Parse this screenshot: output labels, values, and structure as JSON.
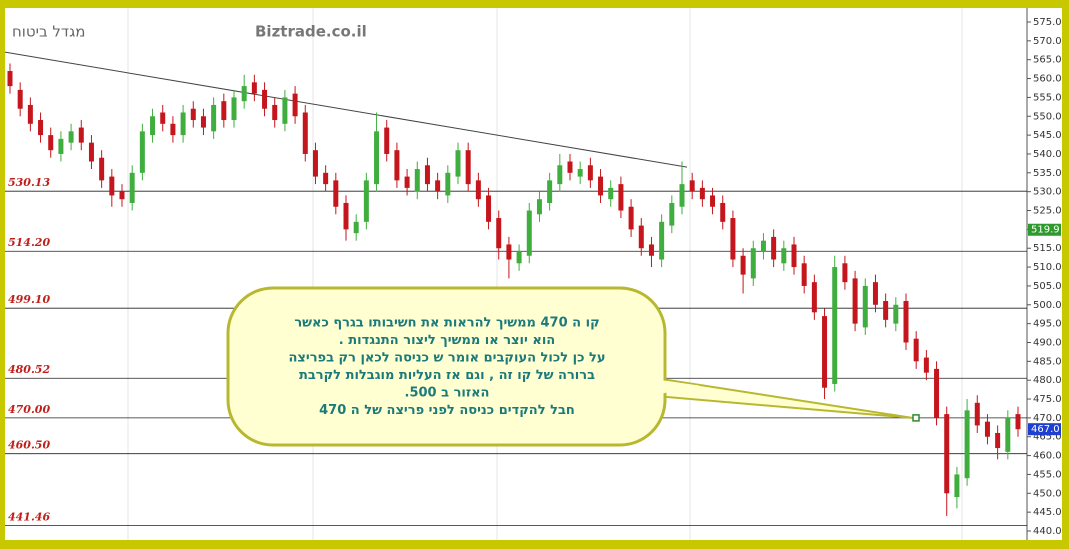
{
  "chart_data": {
    "type": "candlestick",
    "title": "מגדל ביטוח",
    "subtitle": "Biztrade.co.il",
    "open": [
      562,
      557,
      553,
      549,
      545,
      540,
      543,
      547,
      543,
      539,
      534,
      530,
      527,
      535,
      545,
      551,
      548,
      545,
      552,
      550,
      546,
      554,
      549,
      554,
      559,
      557,
      553,
      548,
      556,
      551,
      541,
      535,
      533,
      527,
      519,
      522,
      532,
      547,
      541,
      534,
      530,
      537,
      533,
      529,
      534,
      541,
      533,
      529,
      523,
      516,
      511,
      513,
      524,
      527,
      532,
      538,
      534,
      537,
      534,
      528,
      532,
      526,
      521,
      516,
      512,
      521,
      526,
      533,
      531,
      529,
      527,
      523,
      513,
      507,
      514,
      518,
      511,
      516,
      511,
      506,
      497,
      479,
      511,
      507,
      494,
      506,
      501,
      495,
      501,
      491,
      486,
      483,
      471,
      449,
      454,
      474,
      469,
      466,
      461,
      471
    ],
    "high": [
      564,
      559,
      555,
      551,
      547,
      546,
      548,
      549,
      545,
      541,
      536,
      532,
      537,
      548,
      552,
      553,
      550,
      553,
      554,
      552,
      555,
      556,
      557,
      561,
      561,
      559,
      555,
      557,
      558,
      553,
      543,
      537,
      535,
      529,
      524,
      535,
      551,
      549,
      543,
      536,
      538,
      539,
      535,
      537,
      543,
      543,
      535,
      531,
      525,
      518,
      516,
      527,
      530,
      535,
      540,
      540,
      538,
      539,
      536,
      533,
      534,
      528,
      523,
      518,
      524,
      529,
      538,
      535,
      533,
      531,
      529,
      525,
      515,
      517,
      519,
      520,
      517,
      518,
      513,
      508,
      499,
      513,
      513,
      509,
      507,
      508,
      503,
      502,
      503,
      493,
      488,
      485,
      473,
      457,
      475,
      476,
      471,
      468,
      472,
      473
    ],
    "low": [
      556,
      550,
      546,
      543,
      539,
      538,
      541,
      541,
      536,
      531,
      526,
      526,
      525,
      533,
      543,
      546,
      543,
      543,
      547,
      545,
      544,
      547,
      547,
      552,
      554,
      550,
      547,
      546,
      548,
      538,
      532,
      530,
      524,
      517,
      517,
      520,
      530,
      538,
      531,
      529,
      528,
      530,
      528,
      527,
      532,
      530,
      526,
      520,
      512,
      507,
      509,
      511,
      522,
      525,
      530,
      533,
      532,
      531,
      527,
      526,
      523,
      518,
      513,
      510,
      510,
      519,
      524,
      528,
      526,
      524,
      520,
      510,
      503,
      505,
      512,
      510,
      509,
      508,
      503,
      496,
      475,
      477,
      504,
      493,
      492,
      498,
      494,
      493,
      488,
      483,
      480,
      468,
      444,
      446,
      452,
      466,
      463,
      459,
      459,
      465
    ],
    "close": [
      558,
      552,
      548,
      545,
      541,
      544,
      546,
      543,
      538,
      533,
      529,
      528,
      535,
      546,
      550,
      548,
      545,
      551,
      549,
      547,
      553,
      549,
      555,
      558,
      556,
      552,
      549,
      555,
      550,
      540,
      534,
      532,
      526,
      520,
      522,
      533,
      546,
      540,
      533,
      531,
      536,
      532,
      530,
      535,
      541,
      532,
      528,
      522,
      515,
      512,
      514,
      525,
      528,
      533,
      537,
      535,
      536,
      533,
      529,
      531,
      525,
      520,
      515,
      513,
      522,
      527,
      532,
      530,
      528,
      526,
      522,
      512,
      508,
      515,
      517,
      512,
      515,
      510,
      505,
      498,
      478,
      510,
      506,
      495,
      505,
      500,
      496,
      500,
      490,
      485,
      482,
      470,
      450,
      455,
      472,
      468,
      465,
      462,
      470,
      467
    ],
    "up_color": "#3fae3f",
    "down_color": "#c4161c",
    "ylim": [
      440,
      575
    ],
    "yticks": [
      {
        "value": 440,
        "label": "440.0"
      },
      {
        "value": 445,
        "label": "445.0"
      },
      {
        "value": 450,
        "label": "450.0"
      },
      {
        "value": 455,
        "label": "455.0"
      },
      {
        "value": 460,
        "label": "460.0"
      },
      {
        "value": 465,
        "label": "465.0"
      },
      {
        "value": 470,
        "label": "470.0"
      },
      {
        "value": 475,
        "label": "475.0"
      },
      {
        "value": 480,
        "label": "480.0"
      },
      {
        "value": 485,
        "label": "485.0"
      },
      {
        "value": 490,
        "label": "490.0"
      },
      {
        "value": 495,
        "label": "495.0"
      },
      {
        "value": 500,
        "label": "500.0"
      },
      {
        "value": 505,
        "label": "505.0"
      },
      {
        "value": 510,
        "label": "510.0"
      },
      {
        "value": 515,
        "label": "515.0"
      },
      {
        "value": 520,
        "label": "520.0"
      },
      {
        "value": 525,
        "label": "525.0"
      },
      {
        "value": 530,
        "label": "530.0"
      },
      {
        "value": 535,
        "label": "535.0"
      },
      {
        "value": 540,
        "label": "540.0"
      },
      {
        "value": 545,
        "label": "545.0"
      },
      {
        "value": 550,
        "label": "550.0"
      },
      {
        "value": 555,
        "label": "555.0"
      },
      {
        "value": 560,
        "label": "560.0"
      },
      {
        "value": 565,
        "label": "565.0"
      },
      {
        "value": 570,
        "label": "570.0"
      },
      {
        "value": 575,
        "label": "575.0"
      }
    ],
    "levels": [
      530.13,
      {
        "value": 514.2,
        "label": "514.20"
      },
      {
        "value": 499.1,
        "label": "499.10"
      },
      480.52,
      {
        "value": 470,
        "label": "470.00"
      },
      {
        "value": 460.5,
        "label": "460.50"
      },
      441.46
    ],
    "price_markers": [
      {
        "value": 519.9,
        "label": "519.9",
        "color": "#2e9a2e"
      },
      {
        "value": 467,
        "label": "467.0",
        "color": "#1f3fd0"
      }
    ],
    "trendline": [
      567,
      536.5
    ],
    "annotation": [
      "קו ה 470  ממשיך להראות את חשיבותו בגרף כאשר",
      "הוא יוצר  או ממשיך ליצור התנגדות .",
      "על כן  לכול העוקבים אומר  ש כניסה לכאן רק בפריצה",
      "ברורה  של קו זה , וגם אז  העליות מוגבלות לקרבת",
      "האזור  ב 500.",
      "חבל להקדים  כניסה לפני  פריצה  של ה 470"
    ],
    "annotation_target": 470
  }
}
